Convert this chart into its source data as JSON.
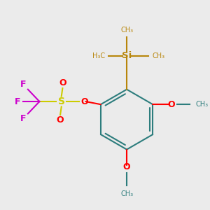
{
  "bg_color": "#EBEBEB",
  "bond_color": "#2D7D7D",
  "si_color": "#B8860B",
  "o_color": "#FF0000",
  "s_color": "#CCCC00",
  "f_color": "#CC00CC",
  "bond_width": 1.5,
  "figsize": [
    3.0,
    3.0
  ],
  "dpi": 100,
  "xlim": [
    -1.8,
    1.6
  ],
  "ylim": [
    -1.8,
    1.8
  ]
}
